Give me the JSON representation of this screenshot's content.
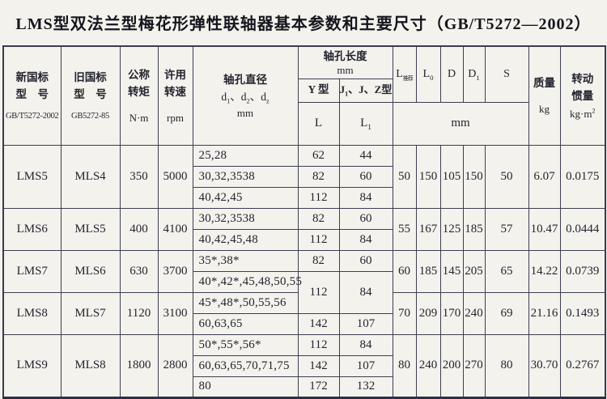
{
  "title": "LMS型双法兰型梅花形弹性联轴器基本参数和主要尺寸（GB/T5272—2002）",
  "header": {
    "new_model": {
      "l1": "新国标",
      "l2": "型　号",
      "std": "GB/T5272-2002"
    },
    "old_model": {
      "l1": "旧国标",
      "l2": "型　号",
      "std": "GB5272-85"
    },
    "torque": {
      "l1": "公称",
      "l2": "转矩",
      "unit": "N·m"
    },
    "speed": {
      "l1": "许用",
      "l2": "转速",
      "unit": "rpm"
    },
    "bore_dia": {
      "l1": "轴孔直径",
      "sym": [
        [
          "d",
          null
        ],
        [
          "1",
          "sub"
        ],
        [
          "、d",
          null
        ],
        [
          "2",
          "sub"
        ],
        [
          "、d",
          null
        ],
        [
          "z",
          "sub"
        ]
      ],
      "unit": "mm"
    },
    "bore_len": {
      "l1": "轴孔长度",
      "unit": "mm",
      "y_type": "Y 型",
      "jjz_type": [
        [
          "J",
          null
        ],
        [
          "1",
          "sub"
        ],
        [
          "、J、Z型",
          null
        ]
      ],
      "L": "L",
      "L1": [
        [
          "L",
          null
        ],
        [
          "1",
          "sub"
        ]
      ]
    },
    "L_rec": [
      [
        "L",
        null
      ],
      [
        "推荐",
        "sub"
      ]
    ],
    "L0": [
      [
        "L",
        null
      ],
      [
        "0",
        "sub"
      ]
    ],
    "D": "D",
    "D1": [
      [
        "D",
        null
      ],
      [
        "1",
        "sub"
      ]
    ],
    "S": "S",
    "mm_span": "mm",
    "mass": {
      "l1": "质量",
      "unit": "kg"
    },
    "inertia": {
      "l1": "转动",
      "l2": "惯量",
      "unit": [
        [
          "kg·m",
          null
        ],
        [
          "2",
          "sup"
        ]
      ]
    }
  },
  "groups": [
    {
      "new_model": "LMS5",
      "old_model": "MLS4",
      "torque": "350",
      "speed": "5000",
      "bores": [
        {
          "d": "25,28",
          "L": "62",
          "L1": "44"
        },
        {
          "d": "30,32,3538",
          "L": "82",
          "L1": "60"
        },
        {
          "d": "40,42,45",
          "L": "112",
          "L1": "84"
        }
      ],
      "L_rec": "50",
      "L0": "150",
      "D": "105",
      "D1": "150",
      "S": "50",
      "mass": "6.07",
      "inertia": "0.0175"
    },
    {
      "new_model": "LMS6",
      "old_model": "MLS5",
      "torque": "400",
      "speed": "4100",
      "bores": [
        {
          "d": "30,32,3538",
          "L": "82",
          "L1": "60"
        },
        {
          "d": "40,42,45,48",
          "L": "112",
          "L1": "84"
        }
      ],
      "L_rec": "55",
      "L0": "167",
      "D": "125",
      "D1": "185",
      "S": "57",
      "mass": "10.47",
      "inertia": "0.0444"
    },
    {
      "new_model": "LMS7",
      "old_model": "MLS6",
      "torque": "630",
      "speed": "3700",
      "bores": [
        {
          "d": "35*,38*",
          "L": "82",
          "L1": "60"
        },
        {
          "d": "40*,42*,45,48,50,55",
          "L": "112",
          "L1": "84"
        }
      ],
      "L_rec": "60",
      "L0": "185",
      "D": "145",
      "D1": "205",
      "S": "65",
      "mass": "14.22",
      "inertia": "0.0739"
    },
    {
      "new_model": "LMS8",
      "old_model": "MLS7",
      "torque": "1120",
      "speed": "3100",
      "bores": [
        {
          "d": "45*,48*,50,55,56"
        },
        {
          "d": "60,63,65",
          "L": "142",
          "L1": "107"
        }
      ],
      "L_rec": "70",
      "L0": "209",
      "D": "170",
      "D1": "240",
      "S": "69",
      "mass": "21.16",
      "inertia": "0.1493"
    },
    {
      "new_model": "LMS9",
      "old_model": "MLS8",
      "torque": "1800",
      "speed": "2800",
      "bores": [
        {
          "d": "50*,55*,56*",
          "L": "112",
          "L1": "84"
        },
        {
          "d": "60,63,65,70,71,75",
          "L": "142",
          "L1": "107"
        },
        {
          "d": "80",
          "L": "172",
          "L1": "132"
        }
      ],
      "L_rec": "80",
      "L0": "240",
      "D": "200",
      "D1": "270",
      "S": "80",
      "mass": "30.70",
      "inertia": "0.2767"
    }
  ]
}
